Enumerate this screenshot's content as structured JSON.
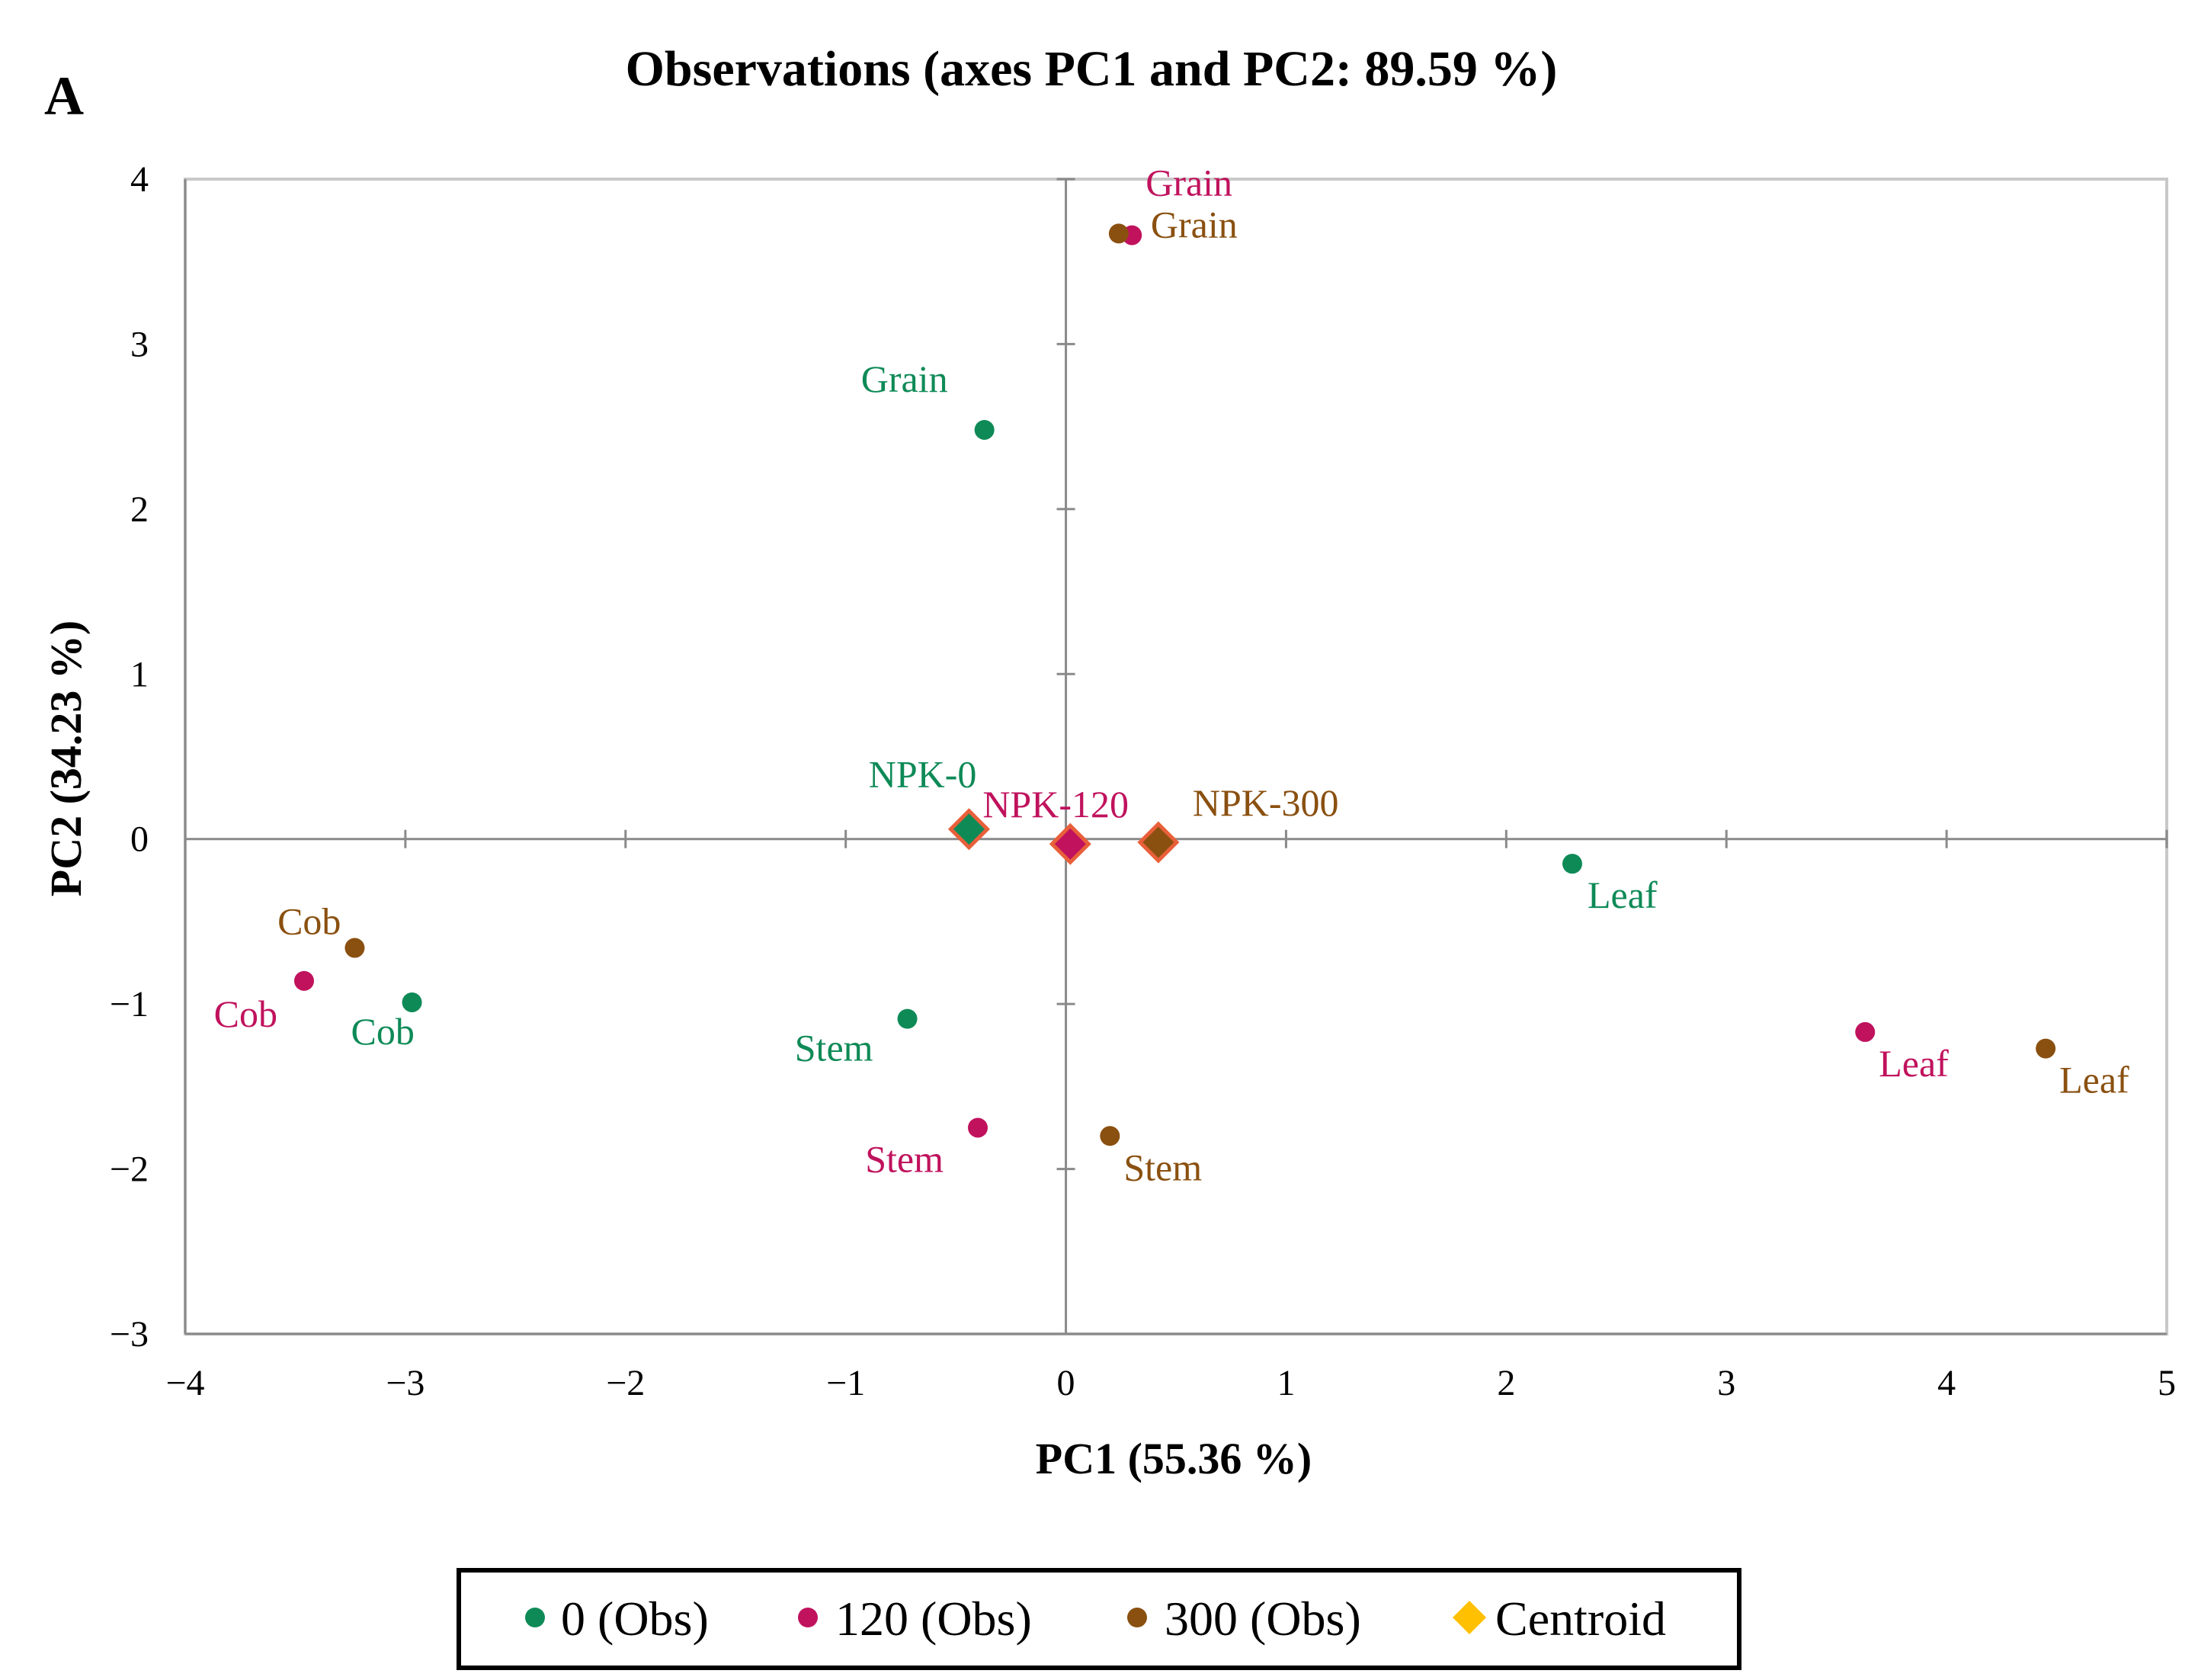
{
  "panel_label": "A",
  "chart_data": {
    "type": "scatter",
    "title": "Observations (axes PC1 and PC2: 89.59 %)",
    "xlabel": "PC1 (55.36 %)",
    "ylabel": "PC2 (34.23 %)",
    "xlim": [
      -4,
      5
    ],
    "ylim": [
      -3,
      4
    ],
    "xticks": [
      -4,
      -3,
      -2,
      -1,
      0,
      1,
      2,
      3,
      4,
      5
    ],
    "yticks": [
      -3,
      -2,
      -1,
      0,
      1,
      2,
      3,
      4
    ],
    "xtick_labels": [
      "−4",
      "−3",
      "−2",
      "−1",
      "0",
      "1",
      "2",
      "3",
      "4",
      "5"
    ],
    "ytick_labels": [
      "−3",
      "−2",
      "−1",
      "0",
      "1",
      "2",
      "3",
      "4"
    ],
    "legend_position": "bottom",
    "colors": {
      "g0": "#0e8a57",
      "g120": "#c0125d",
      "g300": "#8a5010",
      "centroid": "#ffc000",
      "centroid_edge": "#e8603a"
    },
    "series": [
      {
        "name": "0 (Obs)",
        "color": "#0e8a57",
        "marker": "circle",
        "points": [
          {
            "label": "Grain",
            "x": -0.37,
            "y": 2.48
          },
          {
            "label": "Leaf",
            "x": 2.3,
            "y": -0.15
          },
          {
            "label": "Cob",
            "x": -2.97,
            "y": -0.99
          },
          {
            "label": "Stem",
            "x": -0.72,
            "y": -1.09
          }
        ]
      },
      {
        "name": "120 (Obs)",
        "color": "#c0125d",
        "marker": "circle",
        "points": [
          {
            "label": "Grain",
            "x": 0.3,
            "y": 3.66
          },
          {
            "label": "Leaf",
            "x": 3.63,
            "y": -1.17
          },
          {
            "label": "Cob",
            "x": -3.46,
            "y": -0.86
          },
          {
            "label": "Stem",
            "x": -0.4,
            "y": -1.75
          }
        ]
      },
      {
        "name": "300 (Obs)",
        "color": "#8a5010",
        "marker": "circle",
        "points": [
          {
            "label": "Grain",
            "x": 0.24,
            "y": 3.67
          },
          {
            "label": "Leaf",
            "x": 4.45,
            "y": -1.27
          },
          {
            "label": "Cob",
            "x": -3.23,
            "y": -0.66
          },
          {
            "label": "Stem",
            "x": 0.2,
            "y": -1.8
          }
        ]
      },
      {
        "name": "Centroid",
        "color": "#ffc000",
        "marker": "diamond",
        "points": [
          {
            "label": "NPK-0",
            "x": -0.44,
            "y": 0.06,
            "fill": "#0e8a57",
            "label_color": "#0e8a57"
          },
          {
            "label": "NPK-120",
            "x": 0.02,
            "y": -0.03,
            "fill": "#c0125d",
            "label_color": "#c0125d"
          },
          {
            "label": "NPK-300",
            "x": 0.42,
            "y": -0.02,
            "fill": "#8a5010",
            "label_color": "#8a5010"
          }
        ]
      }
    ]
  }
}
